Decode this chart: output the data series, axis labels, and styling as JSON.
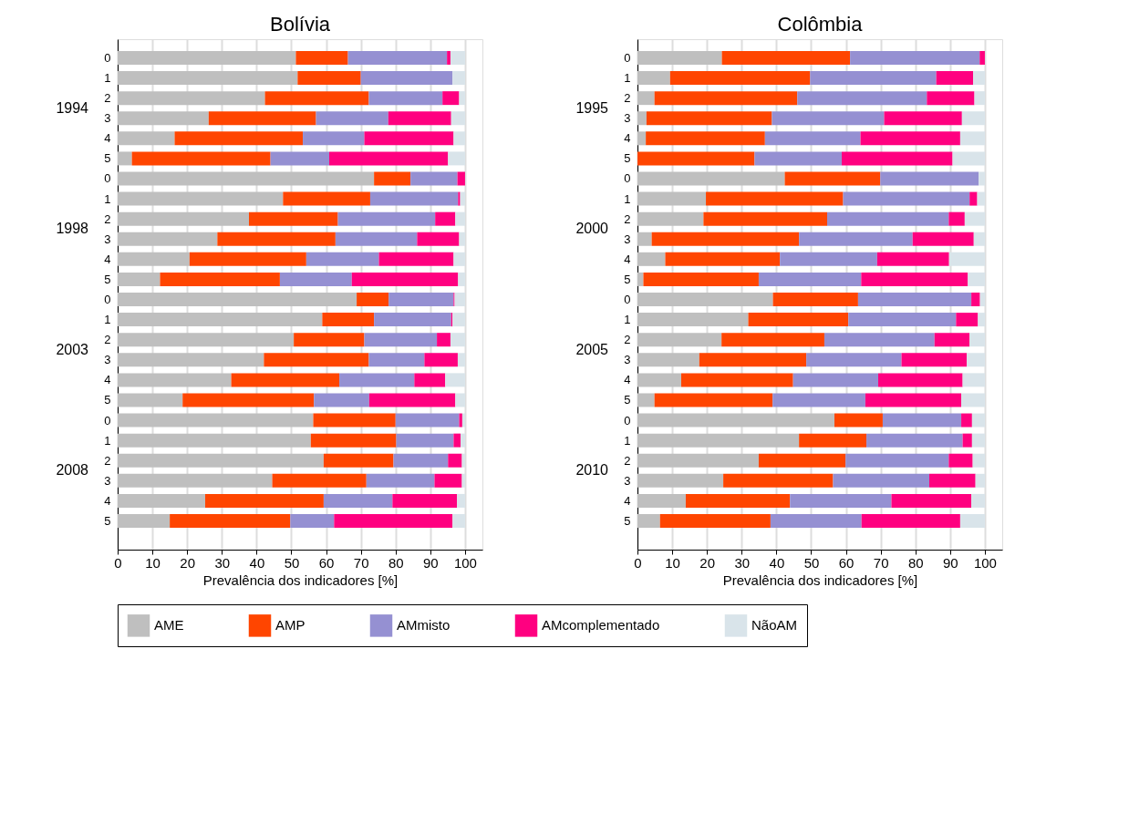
{
  "chart_data": [
    {
      "type": "bar",
      "orientation": "horizontal",
      "stacked": true,
      "title": "Bolívia",
      "xlabel": "Prevalência dos indicadores [%]",
      "xlim": [
        0,
        105
      ],
      "xticks": [
        0,
        10,
        20,
        30,
        40,
        50,
        60,
        70,
        80,
        90,
        100
      ],
      "grid": "x",
      "legend": "bottom",
      "annotations": [
        "1994",
        "1998",
        "2003",
        "2008"
      ],
      "categories": [
        "0",
        "1",
        "2",
        "3",
        "4",
        "5",
        "0",
        "1",
        "2",
        "3",
        "4",
        "5",
        "0",
        "1",
        "2",
        "3",
        "4",
        "5",
        "0",
        "1",
        "2",
        "3",
        "4",
        "5"
      ],
      "series": [
        {
          "name": "AME",
          "color": "#bfbfbf",
          "values": [
            51.3,
            51.8,
            42.4,
            26.2,
            16.4,
            4.1,
            73.8,
            47.6,
            37.8,
            28.7,
            20.7,
            12.2,
            68.8,
            58.9,
            50.7,
            42.1,
            32.7,
            18.7,
            56.3,
            55.6,
            59.3,
            44.5,
            25.2,
            15.0
          ]
        },
        {
          "name": "AMP",
          "color": "#ff4500",
          "values": [
            15.0,
            18.2,
            29.9,
            30.9,
            36.9,
            39.9,
            10.5,
            25.1,
            25.6,
            34.0,
            33.6,
            34.5,
            9.2,
            14.9,
            20.3,
            30.2,
            31.1,
            37.8,
            23.7,
            24.6,
            20.1,
            27.1,
            34.1,
            34.7
          ]
        },
        {
          "name": "AMmisto",
          "color": "#9590d2",
          "values": [
            28.5,
            26.4,
            21.2,
            20.8,
            17.7,
            16.9,
            13.5,
            25.3,
            28.0,
            23.5,
            20.9,
            20.7,
            18.7,
            22.2,
            20.9,
            16.0,
            21.6,
            15.9,
            18.3,
            16.5,
            15.7,
            19.6,
            19.8,
            12.6
          ]
        },
        {
          "name": "AMcomplementado",
          "color": "#ff0080",
          "values": [
            1.0,
            0,
            4.8,
            18.1,
            25.7,
            34.2,
            2.2,
            0.6,
            5.8,
            12.1,
            21.5,
            30.6,
            0.3,
            0.4,
            3.9,
            9.6,
            8.9,
            24.8,
            0.9,
            2.0,
            4.0,
            7.9,
            18.6,
            34.1
          ]
        },
        {
          "name": "NãoAM",
          "color": "#d9e4ea",
          "values": [
            4.2,
            3.6,
            1.7,
            4.0,
            3.3,
            4.9,
            0,
            1.4,
            2.8,
            1.7,
            3.3,
            2.0,
            3.0,
            3.6,
            4.2,
            2.1,
            5.7,
            2.8,
            0.8,
            1.3,
            0.9,
            0.9,
            2.3,
            3.6
          ]
        }
      ]
    },
    {
      "type": "bar",
      "orientation": "horizontal",
      "stacked": true,
      "title": "Colômbia",
      "xlabel": "Prevalência dos indicadores [%]",
      "xlim": [
        0,
        105
      ],
      "xticks": [
        0,
        10,
        20,
        30,
        40,
        50,
        60,
        70,
        80,
        90,
        100
      ],
      "grid": "x",
      "legend": "bottom",
      "annotations": [
        "1995",
        "2000",
        "2005",
        "2010"
      ],
      "categories": [
        "0",
        "1",
        "2",
        "3",
        "4",
        "5",
        "0",
        "1",
        "2",
        "3",
        "4",
        "5",
        "0",
        "1",
        "2",
        "3",
        "4",
        "5",
        "0",
        "1",
        "2",
        "3",
        "4",
        "5"
      ],
      "series": [
        {
          "name": "AME",
          "color": "#bfbfbf",
          "values": [
            24.3,
            9.4,
            4.9,
            2.6,
            2.4,
            0,
            42.4,
            19.7,
            19.0,
            4.1,
            8.0,
            1.7,
            39.0,
            31.9,
            24.2,
            17.8,
            12.6,
            4.9,
            56.7,
            46.5,
            34.9,
            24.7,
            13.9,
            6.5
          ]
        },
        {
          "name": "AMP",
          "color": "#ff4500",
          "values": [
            36.9,
            40.3,
            41.1,
            36.1,
            34.3,
            33.7,
            27.5,
            39.5,
            35.6,
            42.4,
            33.0,
            33.2,
            24.5,
            28.8,
            29.6,
            30.8,
            32.2,
            34.0,
            13.9,
            19.4,
            25.0,
            31.6,
            30.0,
            31.8
          ]
        },
        {
          "name": "AMmisto",
          "color": "#9590d2",
          "values": [
            37.3,
            36.3,
            37.3,
            32.3,
            27.5,
            25.1,
            28.3,
            36.4,
            35.0,
            32.7,
            28.0,
            29.5,
            32.6,
            31.0,
            31.7,
            27.4,
            24.5,
            26.7,
            22.6,
            27.7,
            29.7,
            27.7,
            29.2,
            26.2
          ]
        },
        {
          "name": "AMcomplementado",
          "color": "#ff0080",
          "values": [
            1.5,
            10.6,
            13.7,
            22.4,
            28.7,
            31.9,
            0,
            2.2,
            4.6,
            17.6,
            20.7,
            30.7,
            2.5,
            6.3,
            10.1,
            18.8,
            24.3,
            27.6,
            3.1,
            2.7,
            6.9,
            13.3,
            23.0,
            28.4
          ]
        },
        {
          "name": "NãoAM",
          "color": "#d9e4ea",
          "values": [
            0,
            3.4,
            3.0,
            6.6,
            7.1,
            9.3,
            1.8,
            2.2,
            5.8,
            3.2,
            10.3,
            4.9,
            1.4,
            2.0,
            4.4,
            5.2,
            6.4,
            6.8,
            3.7,
            3.7,
            3.5,
            2.7,
            3.9,
            7.1
          ]
        }
      ]
    }
  ]
}
